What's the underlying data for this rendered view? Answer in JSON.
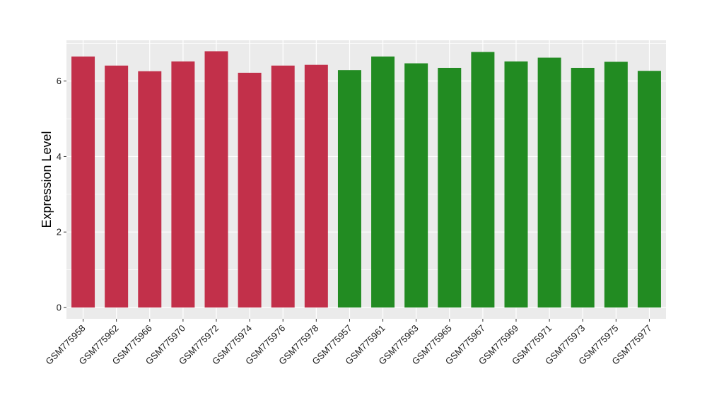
{
  "chart_data": {
    "type": "bar",
    "title": "",
    "xlabel": "",
    "ylabel": "Expression Level",
    "ylim": [
      -0.3,
      7.08
    ],
    "y_ticks": [
      0,
      2,
      4,
      6
    ],
    "grid": true,
    "background": "#ebebeb",
    "categories": [
      "GSM775958",
      "GSM775962",
      "GSM775966",
      "GSM775970",
      "GSM775972",
      "GSM775974",
      "GSM775976",
      "GSM775978",
      "GSM775957",
      "GSM775961",
      "GSM775963",
      "GSM775965",
      "GSM775967",
      "GSM775969",
      "GSM775971",
      "GSM775973",
      "GSM775975",
      "GSM775977"
    ],
    "values": [
      6.65,
      6.41,
      6.26,
      6.52,
      6.79,
      6.22,
      6.41,
      6.43,
      6.29,
      6.65,
      6.47,
      6.35,
      6.77,
      6.52,
      6.62,
      6.35,
      6.51,
      6.27
    ],
    "bar_colors": [
      "#c2304a",
      "#c2304a",
      "#c2304a",
      "#c2304a",
      "#c2304a",
      "#c2304a",
      "#c2304a",
      "#c2304a",
      "#228b22",
      "#228b22",
      "#228b22",
      "#228b22",
      "#228b22",
      "#228b22",
      "#228b22",
      "#228b22",
      "#228b22",
      "#228b22"
    ]
  }
}
